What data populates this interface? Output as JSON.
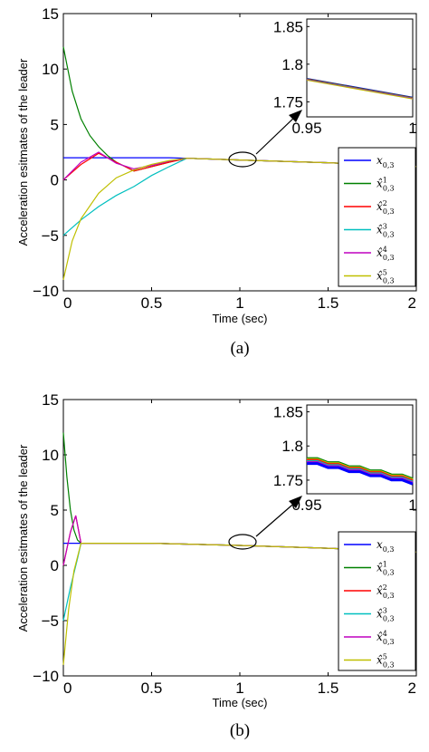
{
  "chart_data": [
    {
      "type": "line",
      "caption": "(a)",
      "xlabel": "Time (sec)",
      "ylabel": "Acceleration esitmates of the leader",
      "xlim": [
        0,
        2
      ],
      "ylim": [
        -10,
        15
      ],
      "xticks": [
        "0",
        "0.5",
        "1",
        "1.5",
        "2"
      ],
      "yticks": [
        "15",
        "10",
        "5",
        "0",
        "−5",
        "−10"
      ],
      "grid": false,
      "legend_position": "right",
      "series": [
        {
          "name": "x_{0,3}",
          "color": "#0000ff",
          "x": [
            0,
            0.1,
            0.2,
            0.3,
            0.4,
            0.5,
            0.6,
            0.7,
            1.0,
            1.5,
            2.0
          ],
          "y": [
            2.0,
            2.0,
            2.0,
            2.0,
            2.0,
            2.0,
            2.0,
            1.95,
            1.8,
            1.55,
            1.2
          ]
        },
        {
          "name": "x̂¹_{0,3}",
          "color": "#008000",
          "x": [
            0,
            0.05,
            0.1,
            0.15,
            0.2,
            0.25,
            0.3,
            0.35,
            0.4,
            0.5,
            0.6,
            0.7,
            1.0,
            1.5,
            2.0
          ],
          "y": [
            12.0,
            8.0,
            5.5,
            4.0,
            3.0,
            2.2,
            1.6,
            1.2,
            0.8,
            1.2,
            1.6,
            1.95,
            1.8,
            1.55,
            1.2
          ]
        },
        {
          "name": "x̂²_{0,3}",
          "color": "#ff0000",
          "x": [
            0,
            0.1,
            0.2,
            0.3,
            0.4,
            0.5,
            0.6,
            0.7,
            1.0,
            1.5,
            2.0
          ],
          "y": [
            0.0,
            1.4,
            2.4,
            1.6,
            0.8,
            1.2,
            1.6,
            1.95,
            1.8,
            1.55,
            1.2
          ]
        },
        {
          "name": "x̂³_{0,3}",
          "color": "#00bfbf",
          "x": [
            0,
            0.1,
            0.2,
            0.3,
            0.4,
            0.5,
            0.6,
            0.7,
            1.0,
            1.5,
            2.0
          ],
          "y": [
            -5.0,
            -3.6,
            -2.4,
            -1.4,
            -0.6,
            0.4,
            1.2,
            1.95,
            1.8,
            1.55,
            1.2
          ]
        },
        {
          "name": "x̂⁴_{0,3}",
          "color": "#bf00bf",
          "x": [
            0,
            0.1,
            0.2,
            0.3,
            0.4,
            0.5,
            0.6,
            0.7,
            1.0,
            1.5,
            2.0
          ],
          "y": [
            0.0,
            1.6,
            2.5,
            1.5,
            1.0,
            1.3,
            1.7,
            1.95,
            1.8,
            1.55,
            1.2
          ]
        },
        {
          "name": "x̂⁵_{0,3}",
          "color": "#bfbf00",
          "x": [
            0,
            0.05,
            0.1,
            0.2,
            0.3,
            0.4,
            0.5,
            0.6,
            0.7,
            1.0,
            1.5,
            2.0
          ],
          "y": [
            -9.0,
            -5.5,
            -3.5,
            -1.2,
            0.2,
            0.9,
            1.4,
            1.75,
            1.95,
            1.8,
            1.55,
            1.2
          ]
        }
      ],
      "inset": {
        "xlim": [
          0.95,
          1.0
        ],
        "ylim": [
          1.73,
          1.86
        ],
        "xticks": [
          "0.95",
          "1"
        ],
        "yticks": [
          "1.85",
          "1.8",
          "1.75"
        ],
        "x": [
          0.95,
          1.0
        ],
        "y": [
          1.78,
          1.755
        ]
      }
    },
    {
      "type": "line",
      "caption": "(b)",
      "xlabel": "Time (sec)",
      "ylabel": "Acceleration esitmates of the leader",
      "xlim": [
        0,
        2
      ],
      "ylim": [
        -10,
        15
      ],
      "xticks": [
        "0",
        "0.5",
        "1",
        "1.5",
        "2"
      ],
      "yticks": [
        "15",
        "10",
        "5",
        "0",
        "−5",
        "−10"
      ],
      "grid": false,
      "legend_position": "right",
      "series": [
        {
          "name": "x_{0,3}",
          "color": "#0000ff",
          "x": [
            0,
            0.1,
            0.5,
            1.0,
            1.5,
            2.0
          ],
          "y": [
            2.0,
            2.0,
            2.0,
            1.8,
            1.55,
            1.2
          ]
        },
        {
          "name": "x̂¹_{0,3}",
          "color": "#008000",
          "x": [
            0,
            0.02,
            0.04,
            0.06,
            0.08,
            0.1,
            0.5,
            1.0,
            1.5,
            2.0
          ],
          "y": [
            12.0,
            8.0,
            5.0,
            3.2,
            2.3,
            2.0,
            2.0,
            1.8,
            1.55,
            1.2
          ]
        },
        {
          "name": "x̂²_{0,3}",
          "color": "#ff0000",
          "x": [
            0,
            0.04,
            0.07,
            0.1,
            0.5,
            1.0,
            1.5,
            2.0
          ],
          "y": [
            0.0,
            3.0,
            4.5,
            2.0,
            2.0,
            1.8,
            1.55,
            1.2
          ]
        },
        {
          "name": "x̂³_{0,3}",
          "color": "#00bfbf",
          "x": [
            0,
            0.04,
            0.08,
            0.1,
            0.5,
            1.0,
            1.5,
            2.0
          ],
          "y": [
            -5.0,
            -2.0,
            0.6,
            2.0,
            2.0,
            1.8,
            1.55,
            1.2
          ]
        },
        {
          "name": "x̂⁴_{0,3}",
          "color": "#bf00bf",
          "x": [
            0,
            0.04,
            0.07,
            0.1,
            0.5,
            1.0,
            1.5,
            2.0
          ],
          "y": [
            0.0,
            3.0,
            4.5,
            2.0,
            2.0,
            1.8,
            1.55,
            1.2
          ]
        },
        {
          "name": "x̂⁵_{0,3}",
          "color": "#bfbf00",
          "x": [
            0,
            0.03,
            0.06,
            0.1,
            0.5,
            1.0,
            1.5,
            2.0
          ],
          "y": [
            -9.0,
            -4.0,
            -0.5,
            2.0,
            2.0,
            1.8,
            1.55,
            1.2
          ]
        }
      ],
      "inset": {
        "xlim": [
          0.95,
          1.0
        ],
        "ylim": [
          1.73,
          1.86
        ],
        "xticks": [
          "0.95",
          "1"
        ],
        "yticks": [
          "1.85",
          "1.8",
          "1.75"
        ],
        "x": [
          0.95,
          0.955,
          0.96,
          0.965,
          0.97,
          0.975,
          0.98,
          0.985,
          0.99,
          0.995,
          1.0
        ],
        "y": [
          1.778,
          1.778,
          1.772,
          1.772,
          1.766,
          1.766,
          1.76,
          1.76,
          1.754,
          1.754,
          1.748
        ]
      }
    }
  ]
}
